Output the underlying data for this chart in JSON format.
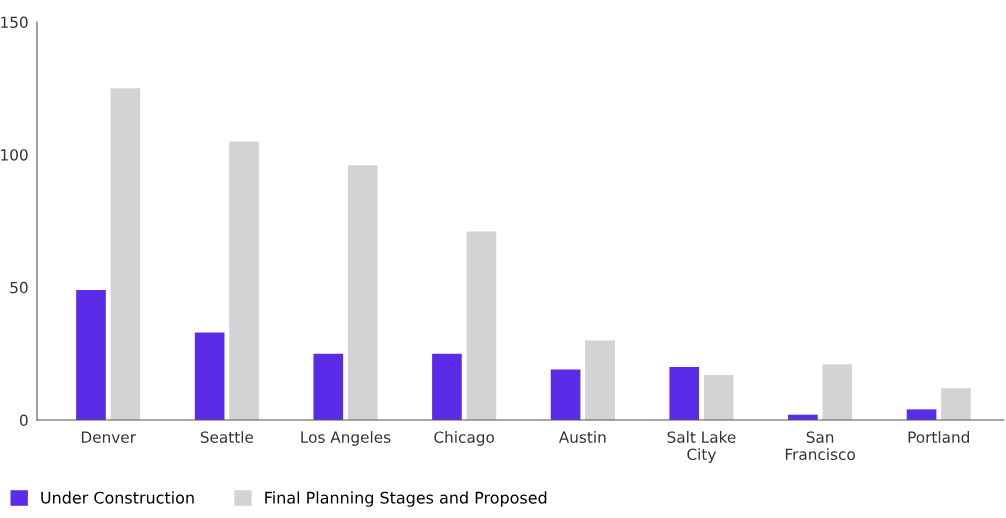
{
  "chart_data": {
    "type": "bar",
    "categories": [
      "Denver",
      "Seattle",
      "Los Angeles",
      "Chicago",
      "Austin",
      "Salt Lake\nCity",
      "San\nFrancisco",
      "Portland"
    ],
    "series": [
      {
        "name": "Under Construction",
        "color": "#5a2ce8",
        "values": [
          49,
          33,
          25,
          25,
          19,
          20,
          2,
          4
        ]
      },
      {
        "name": "Final Planning Stages and Proposed",
        "color": "#d3d3d5",
        "values": [
          125,
          105,
          96,
          71,
          30,
          17,
          21,
          12
        ]
      }
    ],
    "ylim": [
      0,
      150
    ],
    "yticks": [
      0,
      50,
      100,
      150
    ],
    "grid": false,
    "legend": "bottom left"
  }
}
